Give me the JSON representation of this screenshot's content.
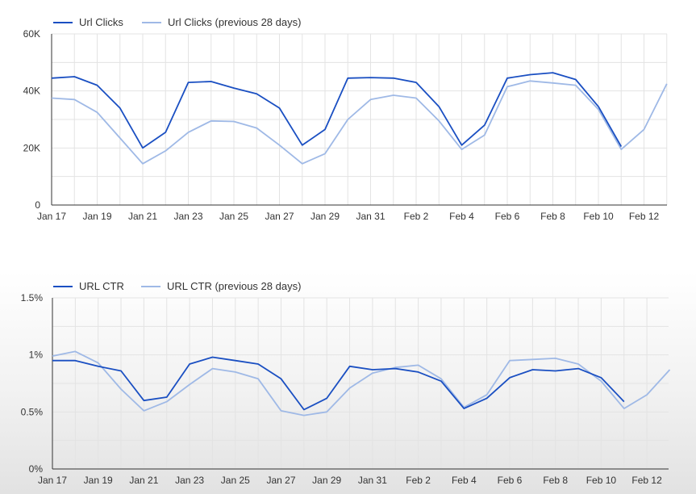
{
  "chart_data": [
    {
      "type": "line",
      "title": "",
      "xlabel": "",
      "ylabel": "",
      "ylim": [
        0,
        60000
      ],
      "yticks": [
        0,
        20000,
        40000,
        60000
      ],
      "ytick_labels": [
        "0",
        "20K",
        "40K",
        "60K"
      ],
      "x_tick_labels": [
        "Jan 17",
        "Jan 19",
        "Jan 21",
        "Jan 23",
        "Jan 25",
        "Jan 27",
        "Jan 29",
        "Jan 31",
        "Feb 2",
        "Feb 4",
        "Feb 6",
        "Feb 8",
        "Feb 10",
        "Feb 12"
      ],
      "legend_placement": "top-left",
      "grid": true,
      "series": [
        {
          "name": "Url Clicks",
          "color": "#1a4fc2",
          "values": [
            44500,
            45000,
            42000,
            34000,
            20000,
            25500,
            43000,
            43300,
            41000,
            39000,
            34000,
            21000,
            26500,
            44500,
            44700,
            44500,
            43000,
            34500,
            21000,
            28000,
            44500,
            45700,
            46400,
            44000,
            34500,
            20500
          ]
        },
        {
          "name": "Url Clicks (previous 28 days)",
          "color": "#9fb9e6",
          "values": [
            37500,
            37000,
            32500,
            23500,
            14500,
            19000,
            25500,
            29500,
            29300,
            27000,
            21000,
            14500,
            18000,
            30000,
            37000,
            38500,
            37500,
            29500,
            19500,
            24500,
            41500,
            43500,
            42800,
            42000,
            33500,
            19500,
            26500,
            42500
          ]
        }
      ]
    },
    {
      "type": "line",
      "title": "",
      "xlabel": "",
      "ylabel": "",
      "ylim": [
        0,
        1.5
      ],
      "yticks": [
        0,
        0.5,
        1,
        1.5
      ],
      "ytick_labels": [
        "0%",
        "0.5%",
        "1%",
        "1.5%"
      ],
      "x_tick_labels": [
        "Jan 17",
        "Jan 19",
        "Jan 21",
        "Jan 23",
        "Jan 25",
        "Jan 27",
        "Jan 29",
        "Jan 31",
        "Feb 2",
        "Feb 4",
        "Feb 6",
        "Feb 8",
        "Feb 10",
        "Feb 12"
      ],
      "legend_placement": "top-left",
      "grid": true,
      "series": [
        {
          "name": "URL CTR",
          "color": "#1a4fc2",
          "values": [
            0.95,
            0.95,
            0.9,
            0.86,
            0.6,
            0.63,
            0.92,
            0.98,
            0.95,
            0.92,
            0.79,
            0.52,
            0.62,
            0.9,
            0.87,
            0.88,
            0.85,
            0.77,
            0.53,
            0.62,
            0.8,
            0.87,
            0.86,
            0.88,
            0.8,
            0.59
          ]
        },
        {
          "name": "URL CTR (previous 28 days)",
          "color": "#9fb9e6",
          "values": [
            0.99,
            1.03,
            0.93,
            0.7,
            0.51,
            0.59,
            0.74,
            0.88,
            0.85,
            0.79,
            0.51,
            0.47,
            0.5,
            0.71,
            0.84,
            0.89,
            0.91,
            0.79,
            0.54,
            0.65,
            0.95,
            0.96,
            0.97,
            0.92,
            0.77,
            0.53,
            0.65,
            0.87
          ]
        }
      ]
    }
  ]
}
